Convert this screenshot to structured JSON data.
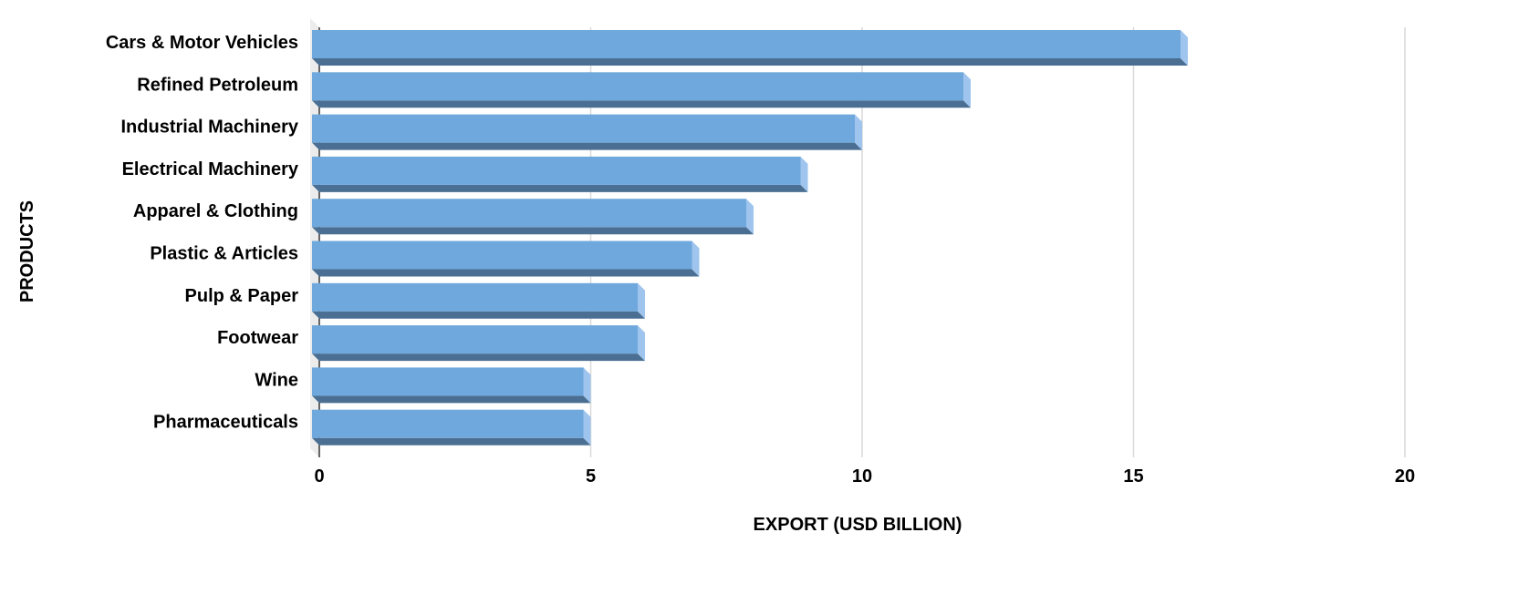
{
  "chart_data": {
    "type": "bar",
    "orientation": "horizontal",
    "style": "3d",
    "categories": [
      "Cars & Motor Vehicles",
      "Refined Petroleum",
      "Industrial Machinery",
      "Electrical Machinery",
      "Apparel & Clothing",
      "Plastic & Articles",
      "Pulp & Paper",
      "Footwear",
      "Wine",
      "Pharmaceuticals"
    ],
    "values": [
      16,
      12,
      10,
      9,
      8,
      7,
      6,
      6,
      5,
      5
    ],
    "xlabel": "EXPORT (USD BILLION)",
    "ylabel": "PRODUCTS",
    "xlim": [
      0,
      20
    ],
    "xticks": [
      "0",
      "5",
      "10",
      "15",
      "20"
    ],
    "grid": true,
    "colors": {
      "bar_front": "#6fa8dc",
      "bar_bottom": "#4a6f92",
      "bar_side": "#9fc5ee",
      "grid": "#d9d9d9",
      "wall": "#ececec"
    }
  }
}
